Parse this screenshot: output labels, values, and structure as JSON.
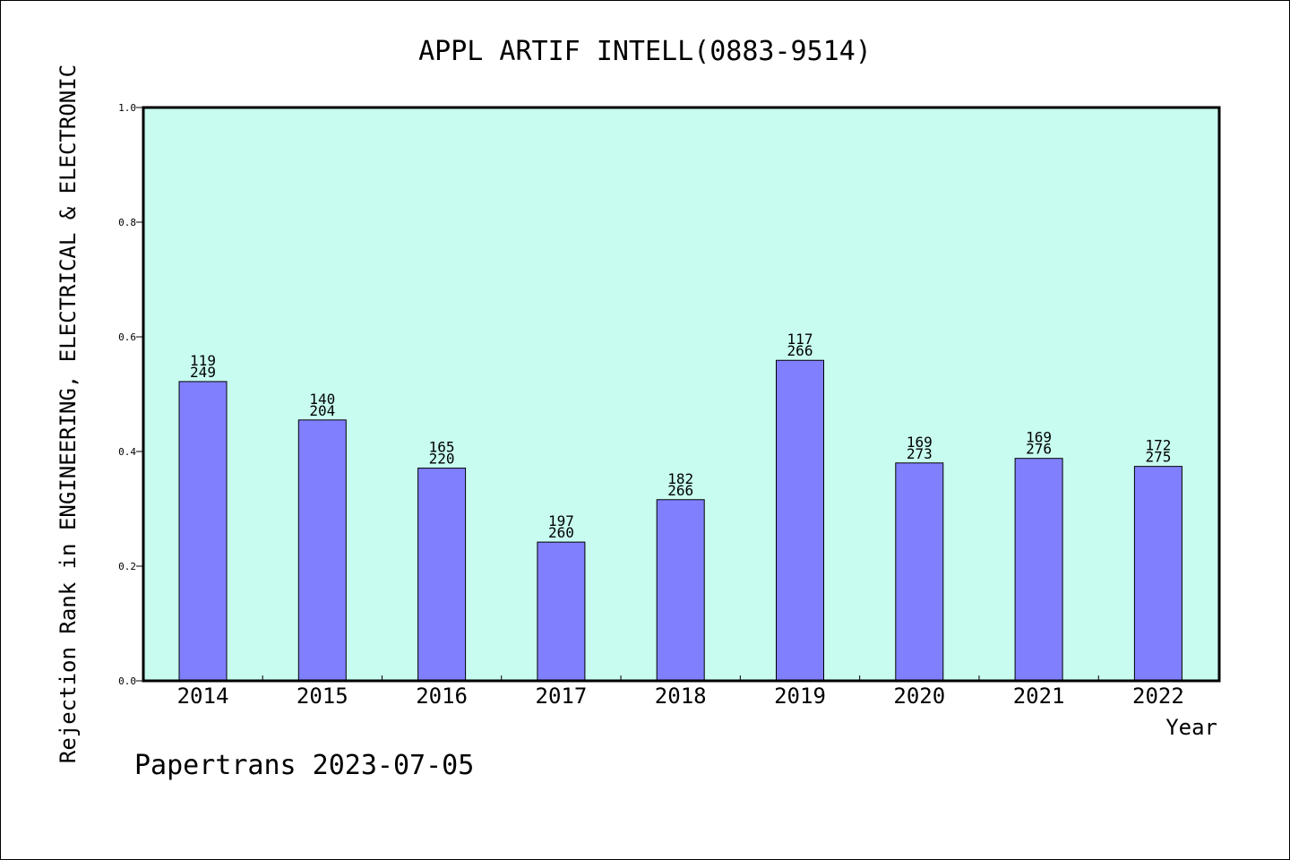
{
  "chart_data": {
    "type": "bar",
    "title": "APPL ARTIF INTELL(0883-9514)",
    "xlabel": "Year",
    "ylabel": "Rejection Rank in ENGINEERING, ELECTRICAL & ELECTRONIC",
    "ylim": [
      0,
      1.0
    ],
    "yticks": [
      "0.0",
      "0.2",
      "0.4",
      "0.6",
      "0.8",
      "1.0"
    ],
    "ytick_values": [
      0,
      0.2,
      0.4,
      0.6,
      0.8,
      1.0
    ],
    "categories": [
      "2014",
      "2015",
      "2016",
      "2017",
      "2018",
      "2019",
      "2020",
      "2021",
      "2022"
    ],
    "values": [
      0.522,
      0.455,
      0.371,
      0.242,
      0.316,
      0.559,
      0.38,
      0.388,
      0.374
    ],
    "labels_top": [
      "119",
      "140",
      "165",
      "197",
      "182",
      "117",
      "169",
      "169",
      "172"
    ],
    "labels_bottom": [
      "249",
      "204",
      "220",
      "260",
      "266",
      "266",
      "273",
      "276",
      "275"
    ],
    "grid": false,
    "legend": "none",
    "colors": {
      "bar": "#8080ff",
      "plot_background": "#c8fcf0",
      "axis": "#000000"
    }
  },
  "footer": "Papertrans 2023-07-05"
}
